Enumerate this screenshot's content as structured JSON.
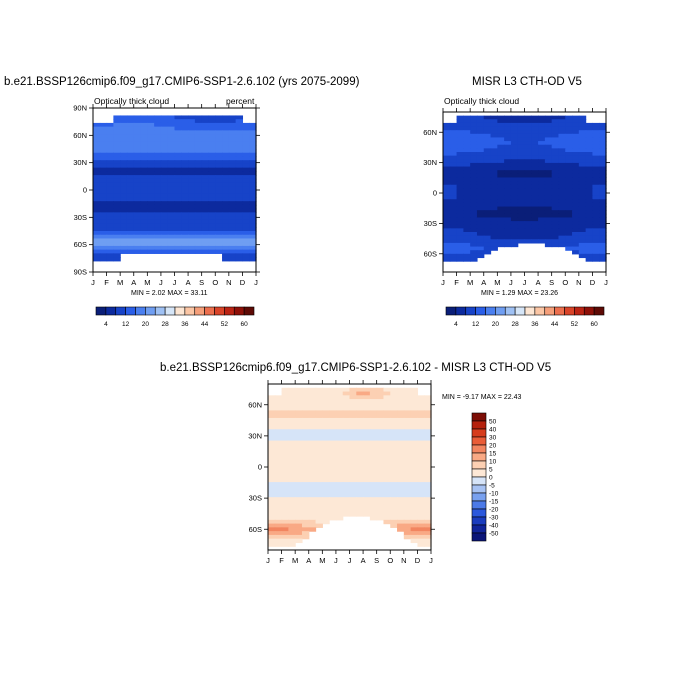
{
  "colors": {
    "abs_scale": [
      "#0a1e78",
      "#0c2a9e",
      "#1743c8",
      "#2a5ee8",
      "#4a7ff0",
      "#6f9ef2",
      "#9fc1f4",
      "#d6e6f8",
      "#fde6d3",
      "#fbc6a5",
      "#f59f7a",
      "#ec6f4e",
      "#d94429",
      "#bb2414",
      "#8e1008",
      "#5e0a05"
    ],
    "diff_scale": [
      "#0a1578",
      "#10249a",
      "#1a3cbe",
      "#2b58dc",
      "#4c7ae8",
      "#79a1ef",
      "#a7c2f3",
      "#d6e4f8",
      "#fde8d6",
      "#fcd0b3",
      "#f9a985",
      "#f28560",
      "#e95c37",
      "#d63c1c",
      "#b5210d",
      "#7d0e06"
    ]
  },
  "chart_data": [
    {
      "type": "heatmap",
      "title": "b.e21.BSSP126cmip6.f09_g17.CMIP6-SSP1-2.6.102 (yrs 2075-2099)",
      "left_label": "Optically thick cloud",
      "right_label": "percent",
      "x_ticks": [
        "J",
        "F",
        "M",
        "A",
        "M",
        "J",
        "J",
        "A",
        "S",
        "O",
        "N",
        "D",
        "J"
      ],
      "y_ticks": [
        "90N",
        "60N",
        "30N",
        "0",
        "30S",
        "60S",
        "90S"
      ],
      "stats_text": "MIN =   2.02 MAX =  33.11",
      "colorbar_labels": [
        "4",
        "12",
        "20",
        "28",
        "36",
        "44",
        "52",
        "60"
      ],
      "min": 2.02,
      "max": 33.11
    },
    {
      "type": "heatmap",
      "title": "MISR L3 CTH-OD V5",
      "left_label": "Optically thick cloud",
      "x_ticks": [
        "J",
        "F",
        "M",
        "A",
        "M",
        "J",
        "J",
        "A",
        "S",
        "O",
        "N",
        "D",
        "J"
      ],
      "y_ticks": [
        "60N",
        "30N",
        "0",
        "30S",
        "60S"
      ],
      "stats_text": "MIN =   1.29 MAX =  23.26",
      "colorbar_labels": [
        "4",
        "12",
        "20",
        "28",
        "36",
        "44",
        "52",
        "60"
      ],
      "min": 1.29,
      "max": 23.26
    },
    {
      "type": "heatmap",
      "title": "b.e21.BSSP126cmip6.f09_g17.CMIP6-SSP1-2.6.102 - MISR L3 CTH-OD V5",
      "x_ticks": [
        "J",
        "F",
        "M",
        "A",
        "M",
        "J",
        "J",
        "A",
        "S",
        "O",
        "N",
        "D",
        "J"
      ],
      "y_ticks": [
        "60N",
        "30N",
        "0",
        "30S",
        "60S"
      ],
      "stats_text": "MIN =  -9.17 MAX =  22.43",
      "colorbar_labels": [
        "50",
        "40",
        "30",
        "20",
        "15",
        "10",
        "5",
        "0",
        "-5",
        "-10",
        "-15",
        "-20",
        "-30",
        "-40",
        "-50"
      ],
      "min": -9.17,
      "max": 22.43
    }
  ]
}
